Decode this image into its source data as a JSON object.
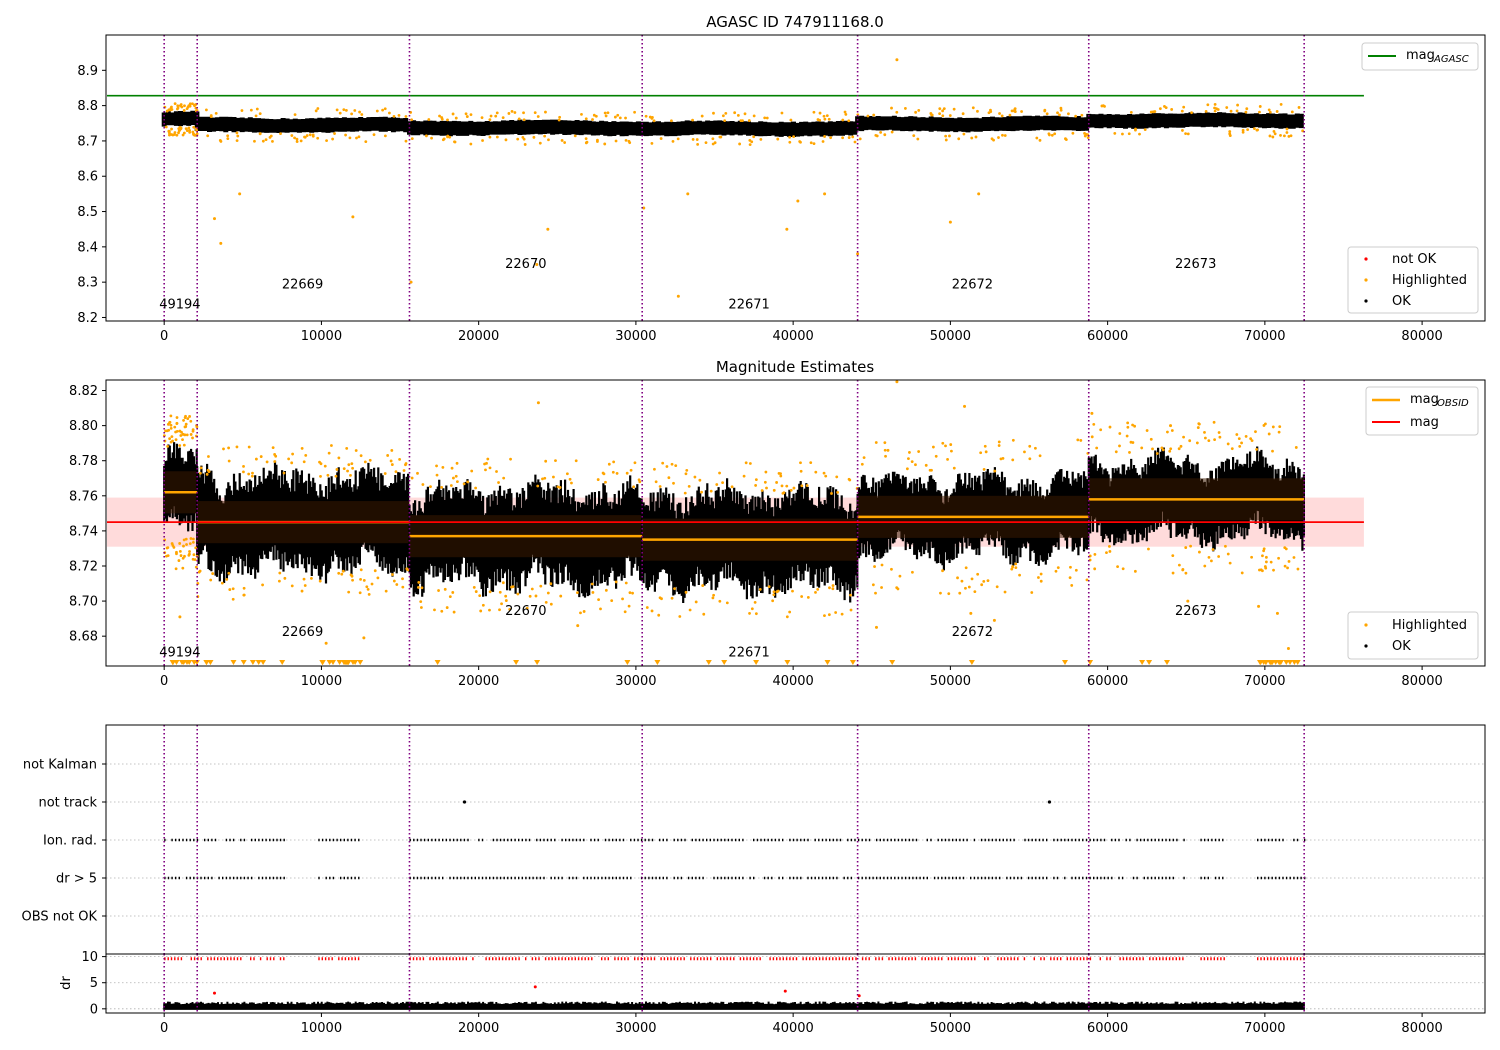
{
  "chart_data": [
    {
      "type": "scatter",
      "title": "AGASC ID 747911168.0",
      "xlim": [
        -3700,
        84000
      ],
      "ylim": [
        8.19,
        9.0
      ],
      "xticks": [
        0,
        10000,
        20000,
        30000,
        40000,
        50000,
        60000,
        70000,
        80000
      ],
      "yticks": [
        8.2,
        8.3,
        8.4,
        8.5,
        8.6,
        8.7,
        8.8,
        8.9
      ],
      "hline": {
        "name": "mag_AGASC",
        "y": 8.828,
        "color": "#008000"
      },
      "segments": [
        {
          "start": 0,
          "end": 2100,
          "mag": 8.762
        },
        {
          "start": 2100,
          "end": 15600,
          "mag": 8.745
        },
        {
          "start": 15600,
          "end": 30400,
          "mag": 8.737
        },
        {
          "start": 30400,
          "end": 44100,
          "mag": 8.735
        },
        {
          "start": 44100,
          "end": 58800,
          "mag": 8.748
        },
        {
          "start": 58800,
          "end": 72500,
          "mag": 8.758
        }
      ],
      "obsid_labels": [
        {
          "text": "49194",
          "x": 1000,
          "y": 8.225
        },
        {
          "text": "22669",
          "x": 8800,
          "y": 8.282
        },
        {
          "text": "22670",
          "x": 23000,
          "y": 8.34
        },
        {
          "text": "22671",
          "x": 37200,
          "y": 8.225
        },
        {
          "text": "22672",
          "x": 51400,
          "y": 8.282
        },
        {
          "text": "22673",
          "x": 65600,
          "y": 8.34
        }
      ],
      "legend_upper": [
        {
          "label": "mag",
          "sub": "AGASC",
          "color": "#008000",
          "marker": "line"
        }
      ],
      "legend_lower": [
        {
          "label": "not OK",
          "color": "#ff0000",
          "marker": "dot"
        },
        {
          "label": "Highlighted",
          "color": "#ffa500",
          "marker": "dot"
        },
        {
          "label": "OK",
          "color": "#000000",
          "marker": "dot"
        }
      ],
      "highlighted_outliers": [
        [
          3200,
          8.48
        ],
        [
          3600,
          8.41
        ],
        [
          4800,
          8.55
        ],
        [
          12000,
          8.485
        ],
        [
          23700,
          8.35
        ],
        [
          24400,
          8.45
        ],
        [
          30500,
          8.51
        ],
        [
          32700,
          8.26
        ],
        [
          33300,
          8.55
        ],
        [
          39600,
          8.45
        ],
        [
          40300,
          8.53
        ],
        [
          42000,
          8.55
        ],
        [
          44100,
          8.38
        ],
        [
          46600,
          8.93
        ],
        [
          50000,
          8.47
        ],
        [
          51800,
          8.55
        ],
        [
          15700,
          8.3
        ]
      ]
    },
    {
      "type": "scatter",
      "title": "Magnitude Estimates",
      "xlim": [
        -3700,
        84000
      ],
      "ylim": [
        8.663,
        8.826
      ],
      "xticks": [
        0,
        10000,
        20000,
        30000,
        40000,
        50000,
        60000,
        70000,
        80000
      ],
      "yticks": [
        8.68,
        8.7,
        8.72,
        8.74,
        8.76,
        8.78,
        8.8,
        8.82
      ],
      "mean_mag": {
        "name": "mag",
        "y": 8.745,
        "band": [
          8.731,
          8.759
        ],
        "color": "#ff0000"
      },
      "obsid_labels": [
        {
          "text": "49194",
          "x": 1000,
          "y": 8.6685
        },
        {
          "text": "22669",
          "x": 8800,
          "y": 8.68
        },
        {
          "text": "22670",
          "x": 23000,
          "y": 8.692
        },
        {
          "text": "22671",
          "x": 37200,
          "y": 8.6685
        },
        {
          "text": "22672",
          "x": 51400,
          "y": 8.68
        },
        {
          "text": "22673",
          "x": 65600,
          "y": 8.692
        }
      ],
      "legend_upper": [
        {
          "label": "mag",
          "sub": "OBSID",
          "color": "#ffa500",
          "marker": "line"
        },
        {
          "label": "mag",
          "color": "#ff0000",
          "marker": "line"
        }
      ],
      "legend_lower": [
        {
          "label": "Highlighted",
          "color": "#ffa500",
          "marker": "dot"
        },
        {
          "label": "OK",
          "color": "#000000",
          "marker": "dot"
        }
      ],
      "highlighted_outliers": [
        [
          23800,
          8.813
        ],
        [
          46600,
          8.825
        ],
        [
          50900,
          8.811
        ],
        [
          59000,
          8.807
        ],
        [
          64000,
          8.8
        ],
        [
          1200,
          8.795
        ],
        [
          10300,
          8.676
        ],
        [
          1000,
          8.691
        ],
        [
          12700,
          8.679
        ],
        [
          26300,
          8.686
        ],
        [
          45300,
          8.685
        ],
        [
          51300,
          8.693
        ],
        [
          52800,
          8.689
        ],
        [
          65100,
          8.7
        ],
        [
          69600,
          8.697
        ],
        [
          70800,
          8.693
        ],
        [
          71500,
          8.673
        ]
      ]
    },
    {
      "type": "scatter",
      "xlim": [
        -3700,
        84000
      ],
      "xticks": [
        0,
        10000,
        20000,
        30000,
        40000,
        50000,
        60000,
        70000,
        80000
      ],
      "flag_categories": [
        "not Kalman",
        "not track",
        "Ion. rad.",
        "dr > 5",
        "OBS not OK"
      ],
      "not_track_points": [
        19100,
        56300
      ],
      "flag_ranges": [
        [
          0,
          7600
        ],
        [
          9800,
          12500
        ],
        [
          15600,
          65000
        ],
        [
          65900,
          67500
        ],
        [
          69500,
          72500
        ]
      ]
    },
    {
      "type": "scatter",
      "ylabel": "dr",
      "xlim": [
        -3700,
        84000
      ],
      "ylim": [
        -0.8,
        10.5
      ],
      "xticks": [
        0,
        10000,
        20000,
        30000,
        40000,
        50000,
        60000,
        70000,
        80000
      ],
      "yticks": [
        0,
        5,
        10
      ],
      "xticklabels": [
        "0",
        "10000",
        "20000",
        "30000",
        "40000",
        "50000",
        "60000",
        "70000",
        "80000"
      ],
      "red_outliers": [
        [
          3200,
          3.0
        ],
        [
          23600,
          4.2
        ],
        [
          39500,
          3.4
        ],
        [
          44200,
          2.5
        ]
      ]
    }
  ],
  "obsid_boundaries": [
    0,
    2100,
    15600,
    30400,
    44100,
    58800,
    72500
  ],
  "colors": {
    "ok": "#000000",
    "highlighted": "#ffa500",
    "not_ok": "#ff0000",
    "boundary": "#800080",
    "agasc": "#008000",
    "mean": "#ff0000",
    "obsid_mag": "#ffa500"
  }
}
